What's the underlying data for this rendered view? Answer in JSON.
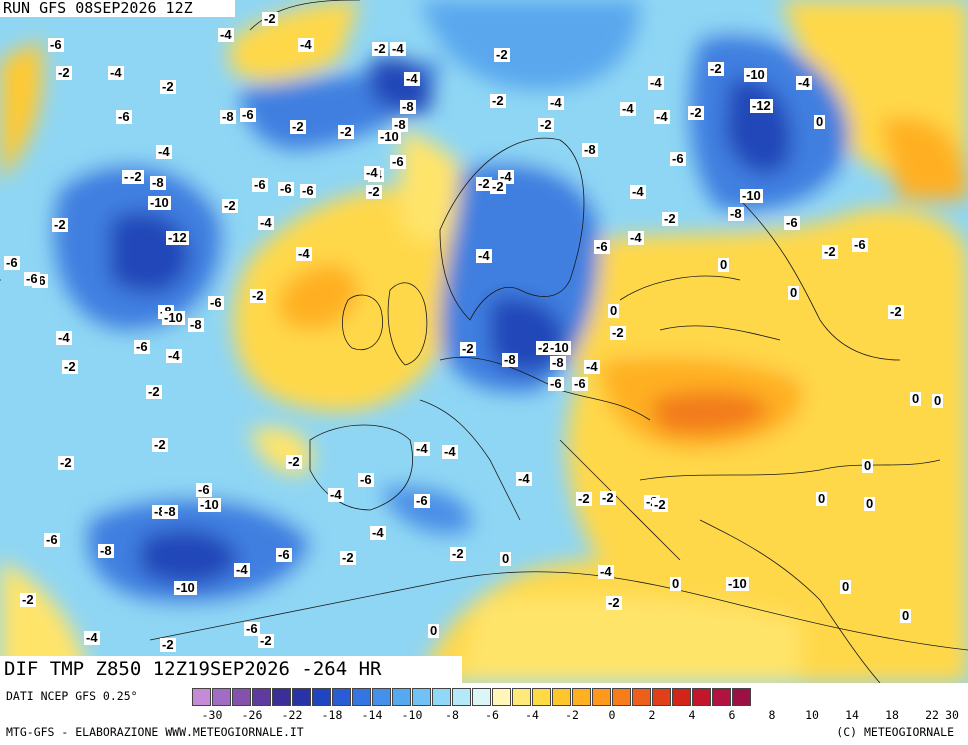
{
  "header": {
    "run": "RUN GFS 08SEP2026 12Z",
    "field": "DIF TMP Z850 12Z19SEP2026 -264 HR"
  },
  "footer": {
    "source": "DATI NCEP GFS 0.25°",
    "credits_left": "MTG-GFS - ELABORAZIONE WWW.METEOGIORNALE.IT",
    "credits_right": "(C) METEOGIORNALE"
  },
  "colorbar": {
    "colors": [
      "#c58bd6",
      "#a26cc4",
      "#8452ad",
      "#5f3aa0",
      "#3a2f98",
      "#2833a8",
      "#1f45c0",
      "#2a5cd6",
      "#3575e2",
      "#4590ea",
      "#57a9ef",
      "#6fc2f3",
      "#90d8f6",
      "#b5e9f8",
      "#dcf6f8",
      "#fff6b8",
      "#ffe97a",
      "#ffda45",
      "#ffc629",
      "#ffb021",
      "#ff981c",
      "#f77d1a",
      "#ee5f1a",
      "#e04018",
      "#d22419",
      "#c3162a",
      "#b21240",
      "#9c1044"
    ],
    "labels": [
      "-30",
      "-26",
      "-22",
      "-18",
      "-14",
      "-10",
      "-8",
      "-6",
      "-4",
      "-2",
      "0",
      "2",
      "4",
      "6",
      "8",
      "10",
      "14",
      "18",
      "22",
      "30"
    ]
  },
  "map_labels": [
    {
      "text": "-2"
    },
    {
      "text": "-4"
    },
    {
      "text": "-4"
    },
    {
      "text": "-6"
    },
    {
      "text": "-2"
    },
    {
      "text": "-4"
    },
    {
      "text": "-2"
    },
    {
      "text": "-6"
    },
    {
      "text": "-2"
    },
    {
      "text": "-2"
    },
    {
      "text": "-4"
    },
    {
      "text": "-4"
    },
    {
      "text": "-4"
    },
    {
      "text": "-6"
    },
    {
      "text": "-8"
    },
    {
      "text": "-8"
    },
    {
      "text": "-2"
    },
    {
      "text": "-10"
    },
    {
      "text": "-4"
    },
    {
      "text": "-4"
    },
    {
      "text": "-2"
    },
    {
      "text": "-10"
    },
    {
      "text": "-2"
    },
    {
      "text": "-12"
    },
    {
      "text": "0"
    },
    {
      "text": "-4"
    },
    {
      "text": "-2"
    },
    {
      "text": "-2"
    },
    {
      "text": "-4"
    },
    {
      "text": "-2"
    },
    {
      "text": "-8"
    },
    {
      "text": "-6"
    },
    {
      "text": "-4"
    },
    {
      "text": "-6"
    },
    {
      "text": "-6"
    },
    {
      "text": "-2"
    },
    {
      "text": "-8"
    },
    {
      "text": "-4"
    },
    {
      "text": "-8"
    },
    {
      "text": "-6"
    },
    {
      "text": "-2"
    },
    {
      "text": "-4"
    },
    {
      "text": "-10"
    },
    {
      "text": "-10"
    },
    {
      "text": "-4"
    },
    {
      "text": "-2"
    },
    {
      "text": "-8"
    },
    {
      "text": "-6"
    },
    {
      "text": "-2"
    },
    {
      "text": "-12"
    },
    {
      "text": "-6"
    },
    {
      "text": "-4"
    },
    {
      "text": "-4"
    },
    {
      "text": "-2"
    },
    {
      "text": "-6"
    },
    {
      "text": "-2"
    },
    {
      "text": "0"
    },
    {
      "text": "-6"
    },
    {
      "text": "-2"
    },
    {
      "text": "0"
    },
    {
      "text": "-4"
    },
    {
      "text": "-2"
    },
    {
      "text": "-6"
    },
    {
      "text": "-8"
    },
    {
      "text": "-10"
    },
    {
      "text": "-6"
    },
    {
      "text": "-4"
    },
    {
      "text": "-8"
    },
    {
      "text": "-2"
    },
    {
      "text": "-8"
    },
    {
      "text": "-2"
    },
    {
      "text": "-6"
    },
    {
      "text": "-10"
    },
    {
      "text": "-2"
    },
    {
      "text": "0"
    },
    {
      "text": "-8"
    },
    {
      "text": "-4"
    },
    {
      "text": "-2"
    },
    {
      "text": "-10"
    },
    {
      "text": "0"
    },
    {
      "text": "-6"
    },
    {
      "text": "-4"
    },
    {
      "text": "-2"
    },
    {
      "text": "-4"
    },
    {
      "text": "-4"
    },
    {
      "text": "-6"
    },
    {
      "text": "-2"
    },
    {
      "text": "-4"
    },
    {
      "text": "-6"
    },
    {
      "text": "-6"
    },
    {
      "text": "-2"
    },
    {
      "text": "-8"
    },
    {
      "text": "-6"
    },
    {
      "text": "-10"
    },
    {
      "text": "-2"
    },
    {
      "text": "-2"
    },
    {
      "text": "-4"
    },
    {
      "text": "0"
    },
    {
      "text": "-2"
    },
    {
      "text": "0"
    },
    {
      "text": "-4"
    },
    {
      "text": "-6"
    },
    {
      "text": "-6"
    },
    {
      "text": "-8"
    },
    {
      "text": "-10"
    },
    {
      "text": "-2"
    },
    {
      "text": "-2"
    },
    {
      "text": "0"
    },
    {
      "text": "-4"
    },
    {
      "text": "-6"
    },
    {
      "text": "-2"
    },
    {
      "text": "0"
    },
    {
      "text": "-4"
    },
    {
      "text": "-8"
    },
    {
      "text": "-2"
    },
    {
      "text": "0"
    },
    {
      "text": "-4"
    },
    {
      "text": "-2"
    },
    {
      "text": "0"
    },
    {
      "text": "-2"
    },
    {
      "text": "-6"
    },
    {
      "text": "0"
    },
    {
      "text": "-2"
    },
    {
      "text": "-4"
    },
    {
      "text": "-2"
    },
    {
      "text": "-2"
    },
    {
      "text": "0"
    },
    {
      "text": "-4"
    },
    {
      "text": "-2"
    },
    {
      "text": "-6"
    },
    {
      "text": "0"
    },
    {
      "text": "-2"
    },
    {
      "text": "0"
    }
  ]
}
